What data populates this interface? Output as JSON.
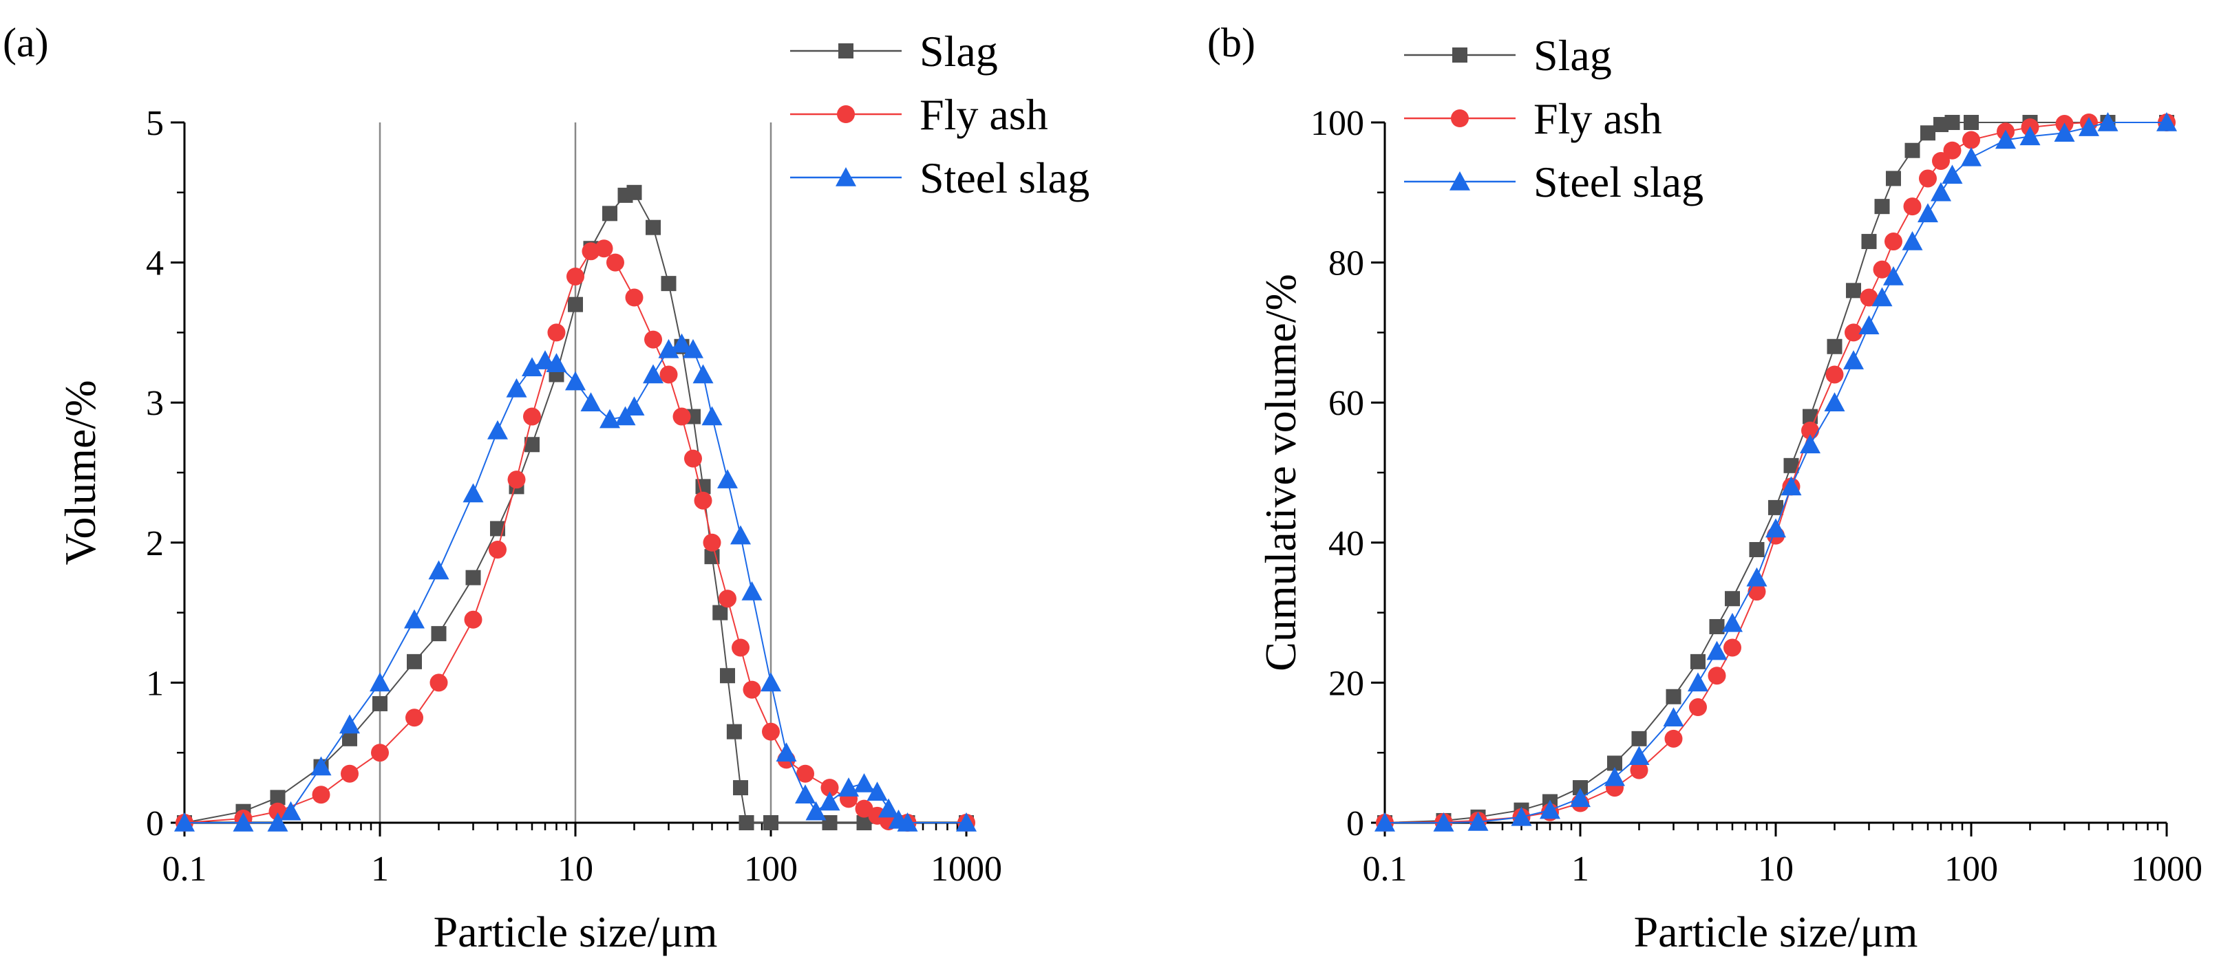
{
  "colors": {
    "slag": "#505050",
    "fly_ash": "#f03c3c",
    "steel_slag": "#1c6ae8"
  },
  "chart_data": [
    {
      "panel": "(a)",
      "type": "scatter-line",
      "xscale": "log",
      "xlim": [
        0.1,
        1000
      ],
      "ylim": [
        0,
        5
      ],
      "xlabel": "Particle size/μm",
      "ylabel": "Volume/%",
      "x_ticks": [
        "0.1",
        "1",
        "10",
        "100",
        "1000"
      ],
      "y_ticks": [
        "0",
        "1",
        "2",
        "3",
        "4",
        "5"
      ],
      "vertical_gridlines_at": [
        1,
        10,
        100
      ],
      "legend": [
        "Slag",
        "Fly ash",
        "Steel slag"
      ],
      "legend_position": "top-right",
      "series": [
        {
          "name": "Slag",
          "marker": "square",
          "color": "#505050",
          "points": [
            [
              0.1,
              0
            ],
            [
              0.2,
              0.08
            ],
            [
              0.3,
              0.18
            ],
            [
              0.5,
              0.4
            ],
            [
              0.7,
              0.6
            ],
            [
              1,
              0.85
            ],
            [
              1.5,
              1.15
            ],
            [
              2,
              1.35
            ],
            [
              3,
              1.75
            ],
            [
              4,
              2.1
            ],
            [
              5,
              2.4
            ],
            [
              6,
              2.7
            ],
            [
              8,
              3.2
            ],
            [
              10,
              3.7
            ],
            [
              12,
              4.1
            ],
            [
              15,
              4.35
            ],
            [
              18,
              4.48
            ],
            [
              20,
              4.5
            ],
            [
              25,
              4.25
            ],
            [
              30,
              3.85
            ],
            [
              35,
              3.4
            ],
            [
              40,
              2.9
            ],
            [
              45,
              2.4
            ],
            [
              50,
              1.9
            ],
            [
              55,
              1.5
            ],
            [
              60,
              1.05
            ],
            [
              65,
              0.65
            ],
            [
              70,
              0.25
            ],
            [
              75,
              0.0
            ],
            [
              100,
              0
            ],
            [
              200,
              0
            ],
            [
              300,
              0
            ],
            [
              500,
              0
            ],
            [
              1000,
              0
            ]
          ]
        },
        {
          "name": "Fly ash",
          "marker": "circle",
          "color": "#f03c3c",
          "points": [
            [
              0.1,
              0
            ],
            [
              0.2,
              0.03
            ],
            [
              0.3,
              0.08
            ],
            [
              0.5,
              0.2
            ],
            [
              0.7,
              0.35
            ],
            [
              1,
              0.5
            ],
            [
              1.5,
              0.75
            ],
            [
              2,
              1.0
            ],
            [
              3,
              1.45
            ],
            [
              4,
              1.95
            ],
            [
              5,
              2.45
            ],
            [
              6,
              2.9
            ],
            [
              8,
              3.5
            ],
            [
              10,
              3.9
            ],
            [
              12,
              4.08
            ],
            [
              14,
              4.1
            ],
            [
              16,
              4.0
            ],
            [
              20,
              3.75
            ],
            [
              25,
              3.45
            ],
            [
              30,
              3.2
            ],
            [
              35,
              2.9
            ],
            [
              40,
              2.6
            ],
            [
              45,
              2.3
            ],
            [
              50,
              2.0
            ],
            [
              60,
              1.6
            ],
            [
              70,
              1.25
            ],
            [
              80,
              0.95
            ],
            [
              100,
              0.65
            ],
            [
              120,
              0.45
            ],
            [
              150,
              0.35
            ],
            [
              200,
              0.25
            ],
            [
              250,
              0.17
            ],
            [
              300,
              0.1
            ],
            [
              350,
              0.05
            ],
            [
              400,
              0.01
            ],
            [
              500,
              0
            ],
            [
              1000,
              0
            ]
          ]
        },
        {
          "name": "Steel slag",
          "marker": "triangle",
          "color": "#1c6ae8",
          "points": [
            [
              0.1,
              0
            ],
            [
              0.2,
              0
            ],
            [
              0.3,
              0.0
            ],
            [
              0.35,
              0.08
            ],
            [
              0.5,
              0.4
            ],
            [
              0.7,
              0.7
            ],
            [
              1,
              1.0
            ],
            [
              1.5,
              1.45
            ],
            [
              2,
              1.8
            ],
            [
              3,
              2.35
            ],
            [
              4,
              2.8
            ],
            [
              5,
              3.1
            ],
            [
              6,
              3.25
            ],
            [
              7,
              3.3
            ],
            [
              8,
              3.28
            ],
            [
              10,
              3.15
            ],
            [
              12,
              3.0
            ],
            [
              15,
              2.88
            ],
            [
              18,
              2.9
            ],
            [
              20,
              2.97
            ],
            [
              25,
              3.2
            ],
            [
              30,
              3.38
            ],
            [
              35,
              3.42
            ],
            [
              40,
              3.38
            ],
            [
              45,
              3.2
            ],
            [
              50,
              2.9
            ],
            [
              60,
              2.45
            ],
            [
              70,
              2.05
            ],
            [
              80,
              1.65
            ],
            [
              100,
              1.0
            ],
            [
              120,
              0.5
            ],
            [
              150,
              0.2
            ],
            [
              170,
              0.08
            ],
            [
              200,
              0.15
            ],
            [
              250,
              0.25
            ],
            [
              300,
              0.28
            ],
            [
              350,
              0.22
            ],
            [
              400,
              0.1
            ],
            [
              450,
              0.02
            ],
            [
              500,
              0
            ],
            [
              1000,
              0
            ]
          ]
        }
      ]
    },
    {
      "panel": "(b)",
      "type": "scatter-line",
      "xscale": "log",
      "xlim": [
        0.1,
        1000
      ],
      "ylim": [
        0,
        100
      ],
      "xlabel": "Particle size/μm",
      "ylabel": "Cumulative volume/%",
      "x_ticks": [
        "0.1",
        "1",
        "10",
        "100",
        "1000"
      ],
      "y_ticks": [
        "0",
        "20",
        "40",
        "60",
        "80",
        "100"
      ],
      "legend": [
        "Slag",
        "Fly ash",
        "Steel slag"
      ],
      "legend_position": "top-left",
      "series": [
        {
          "name": "Slag",
          "marker": "square",
          "color": "#505050",
          "points": [
            [
              0.1,
              0
            ],
            [
              0.2,
              0.3
            ],
            [
              0.3,
              0.8
            ],
            [
              0.5,
              1.8
            ],
            [
              0.7,
              3.0
            ],
            [
              1,
              5.0
            ],
            [
              1.5,
              8.5
            ],
            [
              2,
              12
            ],
            [
              3,
              18
            ],
            [
              4,
              23
            ],
            [
              5,
              28
            ],
            [
              6,
              32
            ],
            [
              8,
              39
            ],
            [
              10,
              45
            ],
            [
              12,
              51
            ],
            [
              15,
              58
            ],
            [
              20,
              68
            ],
            [
              25,
              76
            ],
            [
              30,
              83
            ],
            [
              35,
              88
            ],
            [
              40,
              92
            ],
            [
              50,
              96
            ],
            [
              60,
              98.5
            ],
            [
              70,
              99.7
            ],
            [
              80,
              100
            ],
            [
              100,
              100
            ],
            [
              200,
              100
            ],
            [
              500,
              100
            ],
            [
              1000,
              100
            ]
          ]
        },
        {
          "name": "Fly ash",
          "marker": "circle",
          "color": "#f03c3c",
          "points": [
            [
              0.1,
              0
            ],
            [
              0.2,
              0.1
            ],
            [
              0.3,
              0.3
            ],
            [
              0.5,
              0.8
            ],
            [
              0.7,
              1.5
            ],
            [
              1,
              2.8
            ],
            [
              1.5,
              5
            ],
            [
              2,
              7.5
            ],
            [
              3,
              12
            ],
            [
              4,
              16.5
            ],
            [
              5,
              21
            ],
            [
              6,
              25
            ],
            [
              8,
              33
            ],
            [
              10,
              41
            ],
            [
              12,
              48
            ],
            [
              15,
              56
            ],
            [
              20,
              64
            ],
            [
              25,
              70
            ],
            [
              30,
              75
            ],
            [
              35,
              79
            ],
            [
              40,
              83
            ],
            [
              50,
              88
            ],
            [
              60,
              92
            ],
            [
              70,
              94.5
            ],
            [
              80,
              96
            ],
            [
              100,
              97.5
            ],
            [
              150,
              98.7
            ],
            [
              200,
              99.3
            ],
            [
              300,
              99.8
            ],
            [
              400,
              100
            ],
            [
              1000,
              100
            ]
          ]
        },
        {
          "name": "Steel slag",
          "marker": "triangle",
          "color": "#1c6ae8",
          "points": [
            [
              0.1,
              0
            ],
            [
              0.2,
              0
            ],
            [
              0.3,
              0.1
            ],
            [
              0.5,
              0.8
            ],
            [
              0.7,
              1.8
            ],
            [
              1,
              3.5
            ],
            [
              1.5,
              6.5
            ],
            [
              2,
              9.5
            ],
            [
              3,
              15
            ],
            [
              4,
              20
            ],
            [
              5,
              24.5
            ],
            [
              6,
              28.5
            ],
            [
              8,
              35
            ],
            [
              10,
              42
            ],
            [
              12,
              48
            ],
            [
              15,
              54
            ],
            [
              20,
              60
            ],
            [
              25,
              66
            ],
            [
              30,
              71
            ],
            [
              35,
              75
            ],
            [
              40,
              78
            ],
            [
              50,
              83
            ],
            [
              60,
              87
            ],
            [
              70,
              90
            ],
            [
              80,
              92.5
            ],
            [
              100,
              95
            ],
            [
              150,
              97.5
            ],
            [
              200,
              98
            ],
            [
              300,
              98.5
            ],
            [
              400,
              99.3
            ],
            [
              500,
              100
            ],
            [
              1000,
              100
            ]
          ]
        }
      ]
    }
  ]
}
